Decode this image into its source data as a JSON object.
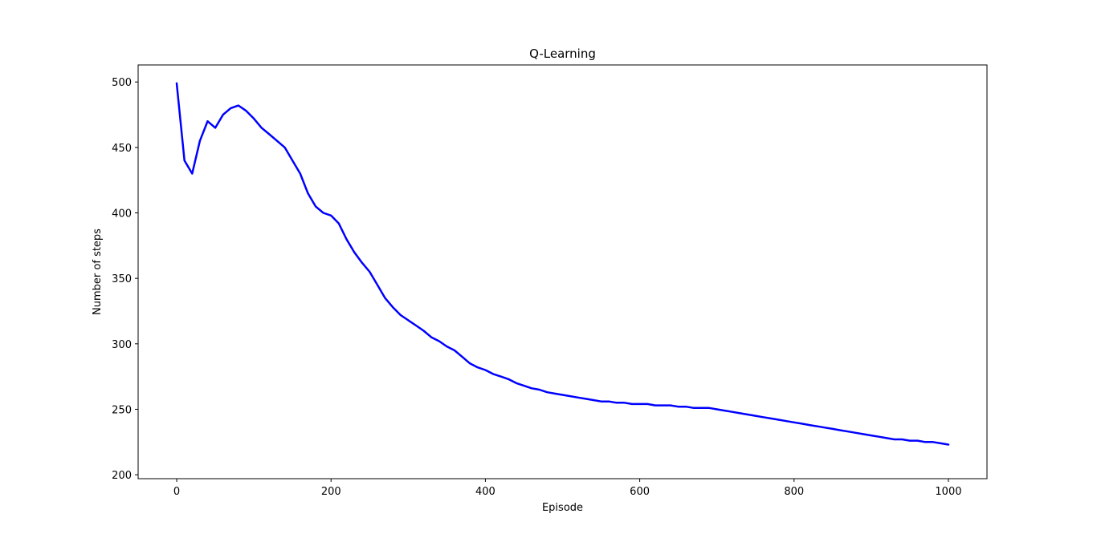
{
  "chart_data": {
    "type": "line",
    "title": "Q-Learning",
    "xlabel": "Episode",
    "ylabel": "Number of steps",
    "xlim": [
      -50,
      1050
    ],
    "ylim": [
      197,
      513
    ],
    "xticks": [
      0,
      200,
      400,
      600,
      800,
      1000
    ],
    "yticks": [
      200,
      250,
      300,
      350,
      400,
      450,
      500
    ],
    "grid": false,
    "line_color": "#0000ff",
    "series": [
      {
        "x": [
          0,
          10,
          20,
          30,
          40,
          50,
          60,
          70,
          80,
          90,
          100,
          110,
          120,
          130,
          140,
          150,
          160,
          170,
          180,
          190,
          200,
          210,
          220,
          230,
          240,
          250,
          260,
          270,
          280,
          290,
          300,
          310,
          320,
          330,
          340,
          350,
          360,
          370,
          380,
          390,
          400,
          410,
          420,
          430,
          440,
          450,
          460,
          470,
          480,
          490,
          500,
          510,
          520,
          530,
          540,
          550,
          560,
          570,
          580,
          590,
          600,
          610,
          620,
          630,
          640,
          650,
          660,
          670,
          680,
          690,
          700,
          710,
          720,
          730,
          740,
          750,
          760,
          770,
          780,
          790,
          800,
          810,
          820,
          830,
          840,
          850,
          860,
          870,
          880,
          890,
          900,
          910,
          920,
          930,
          940,
          950,
          960,
          970,
          980,
          990,
          1000
        ],
        "values": [
          499,
          440,
          430,
          455,
          470,
          465,
          475,
          480,
          482,
          478,
          472,
          465,
          460,
          455,
          450,
          440,
          430,
          415,
          405,
          400,
          398,
          392,
          380,
          370,
          362,
          355,
          345,
          335,
          328,
          322,
          318,
          314,
          310,
          305,
          302,
          298,
          295,
          290,
          285,
          282,
          280,
          277,
          275,
          273,
          270,
          268,
          266,
          265,
          263,
          262,
          261,
          260,
          259,
          258,
          257,
          256,
          256,
          255,
          255,
          254,
          254,
          254,
          253,
          253,
          253,
          252,
          252,
          251,
          251,
          251,
          250,
          249,
          248,
          247,
          246,
          245,
          244,
          243,
          242,
          241,
          240,
          239,
          238,
          237,
          236,
          235,
          234,
          233,
          232,
          231,
          230,
          229,
          228,
          227,
          227,
          226,
          226,
          225,
          225,
          224,
          223
        ]
      }
    ]
  }
}
